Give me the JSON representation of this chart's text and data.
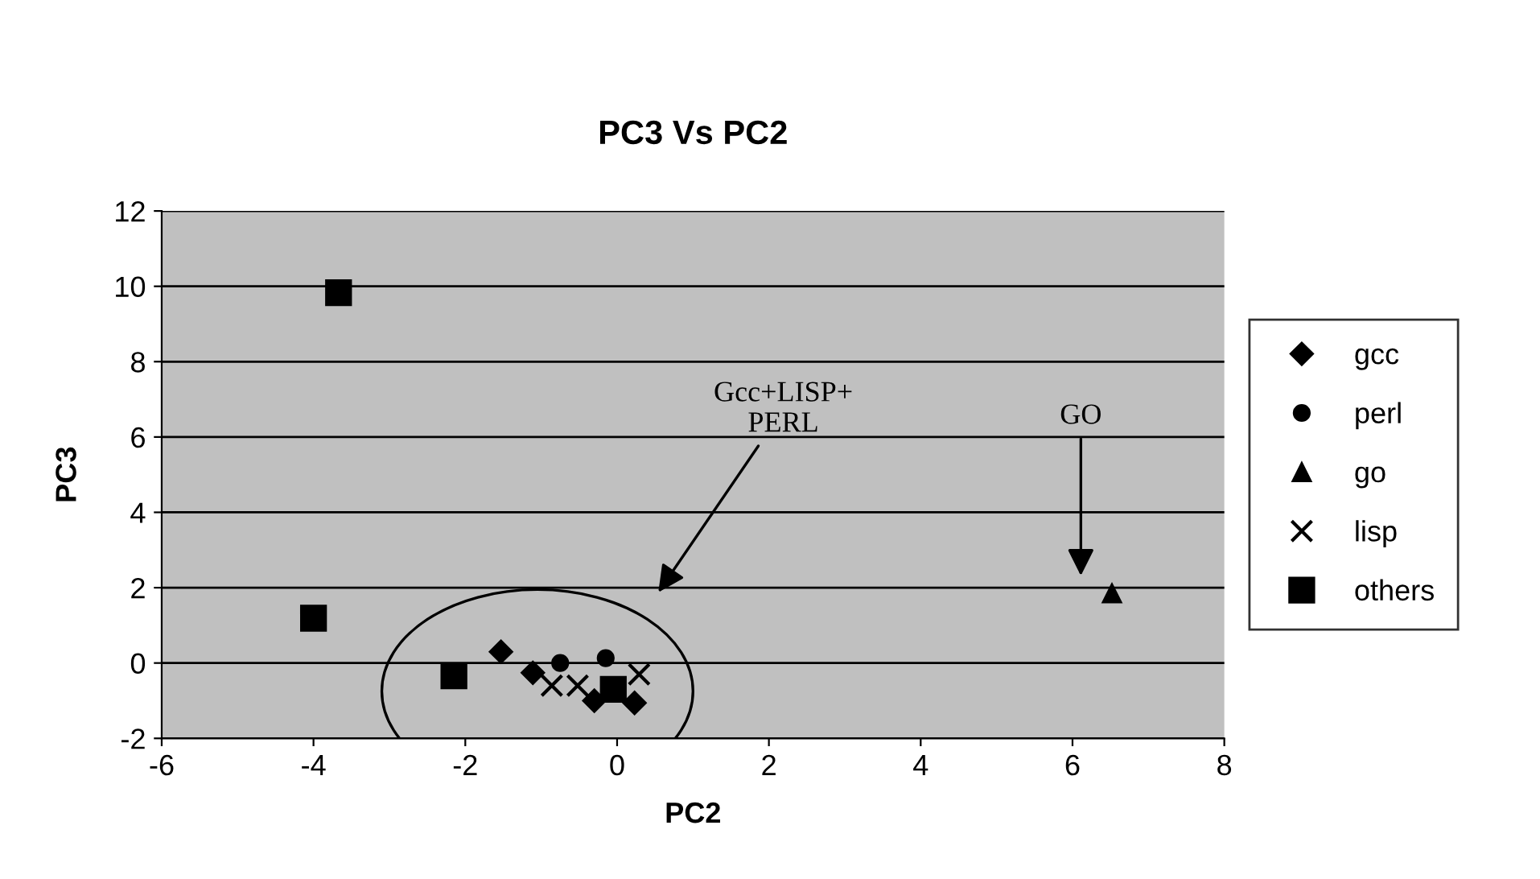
{
  "chart_data": {
    "type": "scatter",
    "title": "PC3 Vs PC2",
    "xlabel": "PC2",
    "ylabel": "PC3",
    "xlim": [
      -6,
      8
    ],
    "xticks": [
      -6,
      -4,
      -2,
      0,
      2,
      4,
      6,
      8
    ],
    "ylim": [
      -2,
      12
    ],
    "yticks": [
      -2,
      0,
      2,
      4,
      6,
      8,
      10,
      12
    ],
    "grid": "y",
    "legend": "right",
    "series": [
      {
        "name": "gcc",
        "color": "#000000",
        "marker": "diamond",
        "x": [
          -1.53,
          -1.11,
          -0.3,
          0.23
        ],
        "values": [
          0.3,
          -0.26,
          -1.0,
          -1.06
        ]
      },
      {
        "name": "perl",
        "color": "#000000",
        "marker": "circle",
        "x": [
          -0.75,
          -0.15
        ],
        "values": [
          0.0,
          0.13
        ]
      },
      {
        "name": "go",
        "color": "#000000",
        "marker": "triangle",
        "x": [
          6.52
        ],
        "values": [
          1.85
        ]
      },
      {
        "name": "lisp",
        "color": "#000000",
        "marker": "cross",
        "x": [
          -0.86,
          -0.52,
          0.29
        ],
        "values": [
          -0.6,
          -0.6,
          -0.3
        ]
      },
      {
        "name": "others",
        "color": "#000000",
        "marker": "square",
        "x": [
          -3.67,
          -4.0,
          -2.15,
          -0.05
        ],
        "values": [
          9.83,
          1.19,
          -0.34,
          -0.7
        ]
      }
    ],
    "annotations": [
      "Gcc+LISP+\nPERL",
      "GO"
    ]
  }
}
